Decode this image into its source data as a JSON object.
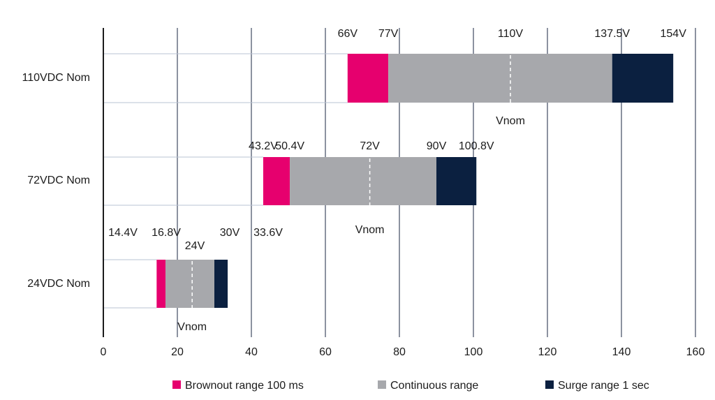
{
  "chart_data": {
    "type": "bar",
    "subtype": "horizontal-range-stacked",
    "title": "",
    "xlabel": "",
    "ylabel": "",
    "xlim": [
      0,
      160
    ],
    "x_ticks": [
      0,
      20,
      40,
      60,
      80,
      100,
      120,
      140,
      160
    ],
    "grid": "vertical",
    "legend_position": "bottom",
    "colors": {
      "brownout": "#e6006e",
      "continuous": "#a7a8ac",
      "surge": "#0b2040",
      "grid": "#1a2440",
      "row_line": "#b9c3d3",
      "axis": "#1b1b1b",
      "text": "#1b1b1b"
    },
    "series": [
      {
        "key": "brownout",
        "name": "Brownout range 100 ms"
      },
      {
        "key": "continuous",
        "name": "Continuous range"
      },
      {
        "key": "surge",
        "name": "Surge range 1 sec"
      }
    ],
    "categories": [
      {
        "label": "110VDC Nom",
        "brownout": [
          66,
          77
        ],
        "continuous": [
          77,
          137.5
        ],
        "surge": [
          137.5,
          154
        ],
        "vnom": 110,
        "vnom_label": "Vnom",
        "value_labels": [
          "66V",
          "77V",
          "110V",
          "137.5V",
          "154V"
        ]
      },
      {
        "label": "72VDC Nom",
        "brownout": [
          43.2,
          50.4
        ],
        "continuous": [
          50.4,
          90
        ],
        "surge": [
          90,
          100.8
        ],
        "vnom": 72,
        "vnom_label": "Vnom",
        "value_labels": [
          "43.2V",
          "50.4V",
          "72V",
          "90V",
          "100.8V"
        ]
      },
      {
        "label": "24VDC Nom",
        "brownout": [
          14.4,
          16.8
        ],
        "continuous": [
          16.8,
          30
        ],
        "surge": [
          30,
          33.6
        ],
        "vnom": 24,
        "vnom_label": "Vnom",
        "value_labels": [
          "14.4V",
          "16.8V",
          "24V",
          "30V",
          "33.6V"
        ]
      }
    ]
  }
}
